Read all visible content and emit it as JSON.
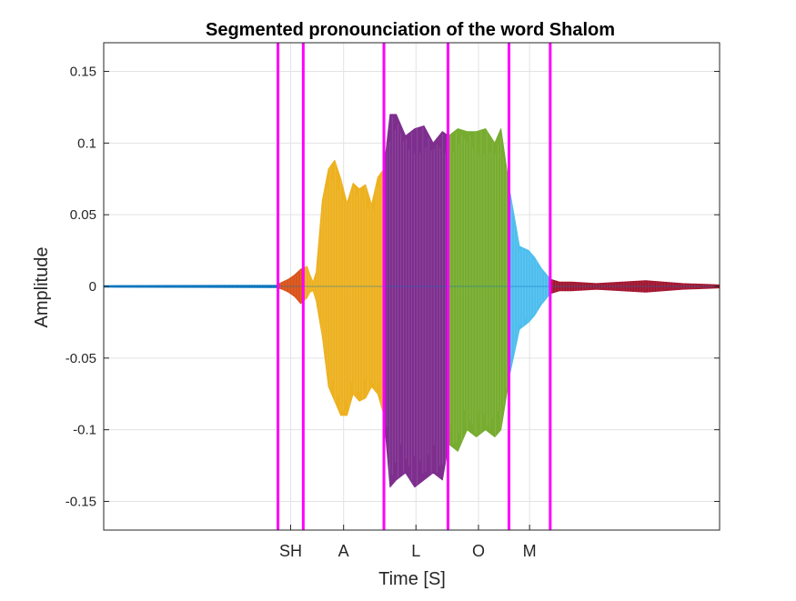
{
  "chart_data": {
    "type": "line",
    "title": "Segmented pronounciation of the word Shalom",
    "xlabel": "Time [S]",
    "ylabel": "Amplitude",
    "xlim": [
      0,
      1
    ],
    "ylim": [
      -0.17,
      0.17
    ],
    "yticks": [
      0.15,
      0.1,
      0.05,
      0,
      -0.05,
      -0.1,
      -0.15
    ],
    "ytick_labels": [
      "0.15",
      "0.1",
      "0.05",
      "0",
      "-0.05",
      "-0.1",
      "-0.15"
    ],
    "grid": true,
    "boundaries": [
      0.283,
      0.324,
      0.455,
      0.559,
      0.658,
      0.725
    ],
    "boundary_color": "#FF00FF",
    "segments": [
      {
        "label": "",
        "start": 0.0,
        "end": 0.283,
        "color": "#0072BD",
        "peak": 0.001
      },
      {
        "label": "SH",
        "start": 0.283,
        "end": 0.324,
        "color": "#D95319",
        "peak": 0.013
      },
      {
        "label": "A",
        "start": 0.324,
        "end": 0.455,
        "color": "#EDB120",
        "peak": 0.085
      },
      {
        "label": "L",
        "start": 0.455,
        "end": 0.559,
        "color": "#7E2F8E",
        "peak": 0.14
      },
      {
        "label": "O",
        "start": 0.559,
        "end": 0.658,
        "color": "#77AC30",
        "peak": 0.107
      },
      {
        "label": "M",
        "start": 0.658,
        "end": 0.725,
        "color": "#4DBEEE",
        "peak": 0.028
      },
      {
        "label": "",
        "start": 0.725,
        "end": 1.0,
        "color": "#A2142F",
        "peak": 0.003
      }
    ],
    "envelope": {
      "x": [
        0.0,
        0.28,
        0.29,
        0.3,
        0.31,
        0.32,
        0.33,
        0.335,
        0.34,
        0.345,
        0.355,
        0.365,
        0.375,
        0.385,
        0.395,
        0.405,
        0.415,
        0.425,
        0.435,
        0.445,
        0.455,
        0.465,
        0.475,
        0.49,
        0.505,
        0.52,
        0.535,
        0.55,
        0.56,
        0.575,
        0.59,
        0.605,
        0.62,
        0.635,
        0.645,
        0.66,
        0.675,
        0.69,
        0.7,
        0.71,
        0.725,
        0.74,
        0.76,
        0.8,
        0.88,
        0.94,
        1.0
      ],
      "top": [
        0.0005,
        0.0008,
        0.003,
        0.005,
        0.008,
        0.012,
        0.014,
        0.008,
        0.003,
        0.01,
        0.06,
        0.082,
        0.088,
        0.075,
        0.058,
        0.072,
        0.068,
        0.071,
        0.057,
        0.076,
        0.082,
        0.12,
        0.12,
        0.105,
        0.11,
        0.112,
        0.1,
        0.108,
        0.105,
        0.11,
        0.108,
        0.108,
        0.11,
        0.1,
        0.11,
        0.065,
        0.028,
        0.025,
        0.02,
        0.013,
        0.005,
        0.003,
        0.003,
        0.002,
        0.004,
        0.002,
        0.001
      ],
      "bottom": [
        -0.0005,
        -0.0008,
        -0.002,
        -0.004,
        -0.007,
        -0.012,
        -0.008,
        -0.004,
        -0.003,
        -0.01,
        -0.035,
        -0.07,
        -0.08,
        -0.09,
        -0.09,
        -0.075,
        -0.08,
        -0.078,
        -0.07,
        -0.075,
        -0.09,
        -0.14,
        -0.135,
        -0.13,
        -0.14,
        -0.135,
        -0.13,
        -0.135,
        -0.11,
        -0.115,
        -0.1,
        -0.105,
        -0.1,
        -0.105,
        -0.1,
        -0.06,
        -0.03,
        -0.025,
        -0.02,
        -0.013,
        -0.005,
        -0.003,
        -0.003,
        -0.002,
        -0.004,
        -0.002,
        -0.001
      ]
    }
  }
}
